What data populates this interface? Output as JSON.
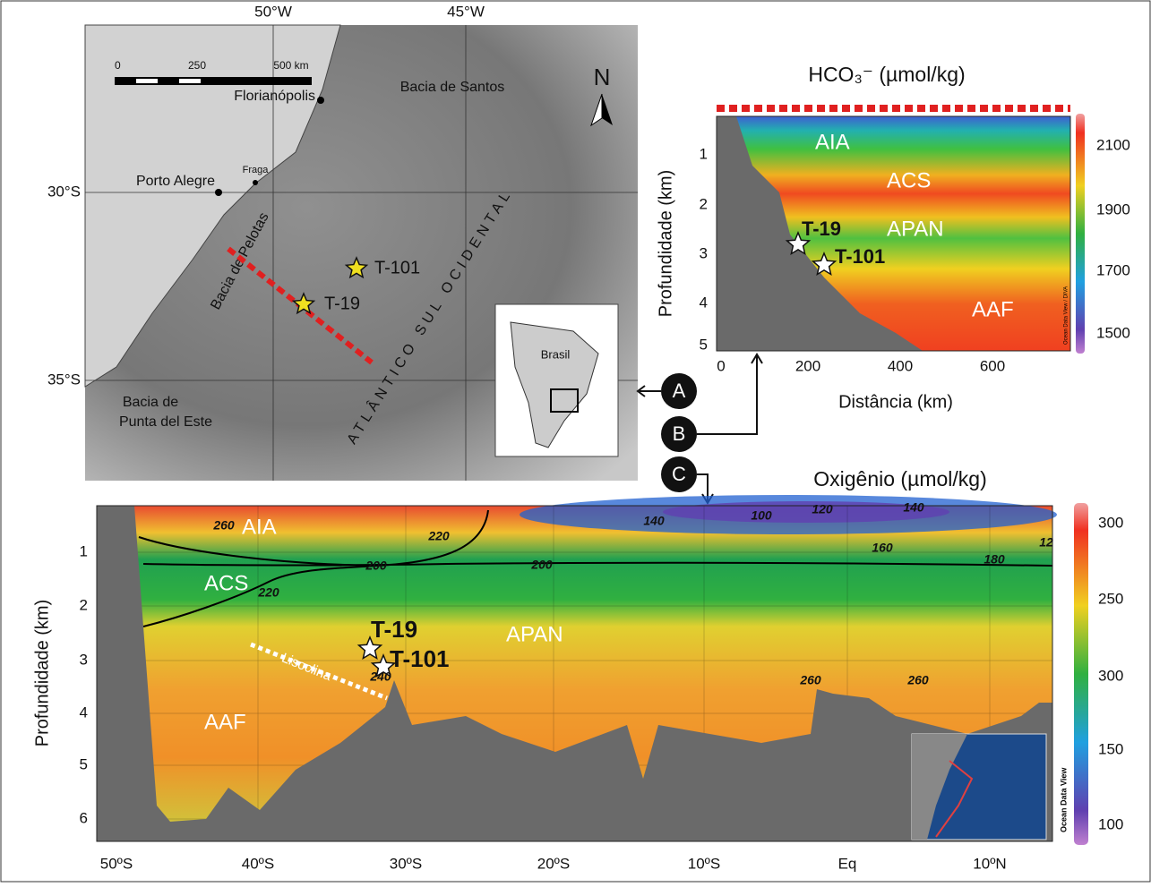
{
  "map": {
    "lon_labels": [
      "50°W",
      "45°W"
    ],
    "lat_labels": [
      "30°S",
      "35°S"
    ],
    "scale": [
      "0",
      "250",
      "500 km"
    ],
    "north": "N",
    "places": [
      "Florianópolis",
      "Porto Alegre",
      "Fraga",
      "Bacia de Santos",
      "Bacia de Pelotas",
      "Bacia de",
      "Punta del Este",
      "ATLÂNTICO SUL OCIDENTAL"
    ],
    "stations": [
      "T-101",
      "T-19"
    ],
    "inset": "Brasil"
  },
  "markers": [
    "A",
    "B",
    "C"
  ],
  "hco3": {
    "title": "HCO₃⁻ (µmol/kg)",
    "y_label": "Profundidade (km)",
    "x_label": "Distância (km)",
    "yticks": [
      "1",
      "2",
      "3",
      "4",
      "5"
    ],
    "xticks": [
      "0",
      "200",
      "400",
      "600"
    ],
    "colorbar": [
      "2100",
      "1900",
      "1700",
      "1500"
    ],
    "water_masses": [
      "AIA",
      "ACS",
      "APAN",
      "AAF"
    ],
    "stations": [
      "T-19",
      "T-101"
    ],
    "credit": "Ocean Data View / DIVA"
  },
  "oxygen": {
    "title": "Oxigênio (µmol/kg)",
    "y_label": "Profundidade (km)",
    "yticks": [
      "1",
      "2",
      "3",
      "4",
      "5",
      "6"
    ],
    "xticks": [
      "50ºS",
      "40ºS",
      "30ºS",
      "20ºS",
      "10ºS",
      "Eq",
      "10ºN"
    ],
    "colorbar": [
      "300",
      "250",
      "300",
      "150",
      "100"
    ],
    "water_masses": [
      "AIA",
      "ACS",
      "APAN",
      "AAF"
    ],
    "stations": [
      "T-19",
      "T-101"
    ],
    "feature": "Lisoclina",
    "contours": [
      "260",
      "220",
      "200",
      "200",
      "220",
      "140",
      "100",
      "120",
      "140",
      "160",
      "180",
      "12",
      "260",
      "260",
      "240"
    ],
    "credit": "Ocean Data View"
  }
}
